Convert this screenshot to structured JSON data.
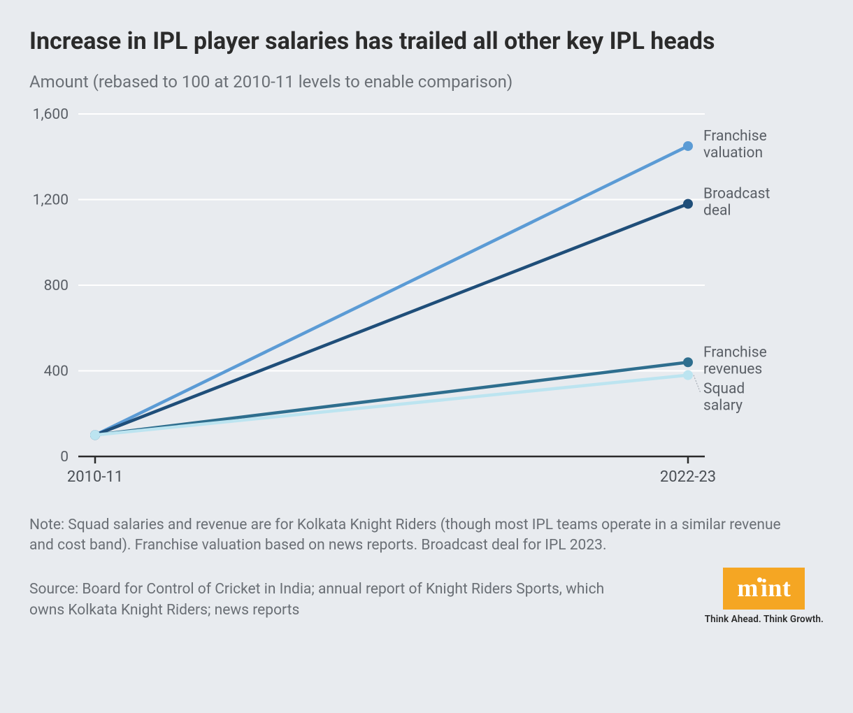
{
  "title": "Increase in IPL player salaries has trailed all other key IPL heads",
  "subtitle": "Amount (rebased to 100 at 2010-11 levels to enable comparison)",
  "chart": {
    "type": "line",
    "background_color": "#e8ebef",
    "grid_color": "#ffffff",
    "axis_color": "#2b2b2b",
    "x_categories": [
      "2010-11",
      "2022-23"
    ],
    "ylim": [
      0,
      1600
    ],
    "ytick_step": 400,
    "y_ticks": [
      0,
      400,
      800,
      1200,
      1600
    ],
    "y_tick_labels": [
      "0",
      "400",
      "800",
      "1,200",
      "1,600"
    ],
    "line_width": 4.5,
    "marker_radius": 7,
    "series": [
      {
        "name": "Franchise valuation",
        "color": "#5b9bd5",
        "values": [
          100,
          1450
        ],
        "label_lines": [
          "Franchise",
          "valuation"
        ]
      },
      {
        "name": "Broadcast deal",
        "color": "#1f4e79",
        "values": [
          100,
          1180
        ],
        "label_lines": [
          "Broadcast",
          "deal"
        ]
      },
      {
        "name": "Franchise revenues",
        "color": "#2e6e8e",
        "values": [
          100,
          440
        ],
        "label_lines": [
          "Franchise",
          "revenues"
        ]
      },
      {
        "name": "Squad salary",
        "color": "#bce4f0",
        "values": [
          100,
          380
        ],
        "label_lines": [
          "Squad",
          "salary"
        ]
      }
    ],
    "label_fontsize": 21,
    "tick_fontsize": 21
  },
  "note": "Note: Squad salaries and revenue are for Kolkata Knight Riders (though most IPL teams operate in a similar revenue and cost band). Franchise valuation based on news reports. Broadcast deal for IPL 2023.",
  "source": "Source: Board for Control of Cricket in India; annual report of Knight Riders Sports, which owns Kolkata Knight Riders; news reports",
  "branding": {
    "logo_text": "mint",
    "logo_bg": "#f5a623",
    "logo_fg": "#ffffff",
    "tagline": "Think Ahead. Think Growth."
  }
}
